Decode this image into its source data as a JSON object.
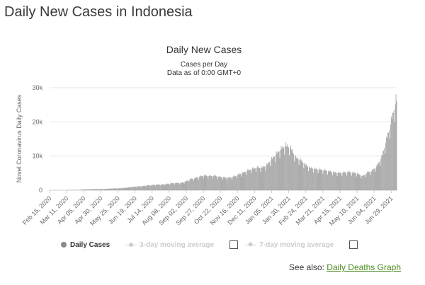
{
  "page": {
    "heading": "Daily New Cases in Indonesia"
  },
  "chart_data": {
    "type": "bar",
    "title": "Daily New Cases",
    "subtitle_line1": "Cases per Day",
    "subtitle_line2": "Data as of 0:00 GMT+0",
    "ylabel": "Novel Coronavirus Daily Cases",
    "ylim": [
      0,
      30000
    ],
    "yticks": [
      0,
      10000,
      20000,
      30000
    ],
    "ytick_labels": [
      "0",
      "10k",
      "20k",
      "30k"
    ],
    "grid": true,
    "x_start": "2020-02-15",
    "x_end": "2021-07-07",
    "xtick_labels": [
      "Feb 15, 2020",
      "Mar 11, 2020",
      "Apr 05, 2020",
      "Apr 30, 2020",
      "May 25, 2020",
      "Jun 19, 2020",
      "Jul 14, 2020",
      "Aug 08, 2020",
      "Sep 02, 2020",
      "Sep 27, 2020",
      "Oct 22, 2020",
      "Nov 16, 2020",
      "Dec 11, 2020",
      "Jan 05, 2021",
      "Jan 30, 2021",
      "Feb 24, 2021",
      "Mar 21, 2021",
      "Apr 15, 2021",
      "May 10, 2021",
      "Jun 04, 2021",
      "Jun 29, 2021"
    ],
    "series": [
      {
        "name": "Daily Cases",
        "color": "#999999",
        "weekly_start_dates": [
          "2020-02-15",
          "2020-02-22",
          "2020-02-29",
          "2020-03-07",
          "2020-03-14",
          "2020-03-21",
          "2020-03-28",
          "2020-04-04",
          "2020-04-11",
          "2020-04-18",
          "2020-04-25",
          "2020-05-02",
          "2020-05-09",
          "2020-05-16",
          "2020-05-23",
          "2020-05-30",
          "2020-06-06",
          "2020-06-13",
          "2020-06-20",
          "2020-06-27",
          "2020-07-04",
          "2020-07-11",
          "2020-07-18",
          "2020-07-25",
          "2020-08-01",
          "2020-08-08",
          "2020-08-15",
          "2020-08-22",
          "2020-08-29",
          "2020-09-05",
          "2020-09-12",
          "2020-09-19",
          "2020-09-26",
          "2020-10-03",
          "2020-10-10",
          "2020-10-17",
          "2020-10-24",
          "2020-10-31",
          "2020-11-07",
          "2020-11-14",
          "2020-11-21",
          "2020-11-28",
          "2020-12-05",
          "2020-12-12",
          "2020-12-19",
          "2020-12-26",
          "2021-01-02",
          "2021-01-09",
          "2021-01-16",
          "2021-01-23",
          "2021-01-30",
          "2021-02-06",
          "2021-02-13",
          "2021-02-20",
          "2021-02-27",
          "2021-03-06",
          "2021-03-13",
          "2021-03-20",
          "2021-03-27",
          "2021-04-03",
          "2021-04-10",
          "2021-04-17",
          "2021-04-24",
          "2021-05-01",
          "2021-05-08",
          "2021-05-15",
          "2021-05-22",
          "2021-05-29",
          "2021-06-05",
          "2021-06-12",
          "2021-06-19",
          "2021-06-26",
          "2021-07-03"
        ],
        "weekly_avg_values": [
          0,
          0,
          0,
          10,
          60,
          100,
          150,
          250,
          300,
          350,
          350,
          370,
          450,
          550,
          550,
          650,
          850,
          1000,
          1100,
          1200,
          1400,
          1500,
          1650,
          1650,
          1800,
          2000,
          2100,
          2100,
          2500,
          3200,
          3500,
          4000,
          4300,
          4100,
          4200,
          3900,
          3700,
          3600,
          3900,
          4500,
          5000,
          5700,
          6200,
          6600,
          6500,
          7300,
          9000,
          10500,
          12000,
          13000,
          12200,
          9500,
          8800,
          7500,
          6500,
          6200,
          6000,
          5800,
          5500,
          5200,
          5000,
          5100,
          5300,
          5100,
          4800,
          4000,
          5100,
          5600,
          7000,
          9500,
          14500,
          20000,
          26000
        ]
      }
    ]
  },
  "legend": {
    "daily_cases": "Daily Cases",
    "moving_3day": "3-day moving average",
    "moving_7day": "7-day moving average"
  },
  "see_also": {
    "prefix": "See also:",
    "link": "Daily Deaths Graph"
  }
}
